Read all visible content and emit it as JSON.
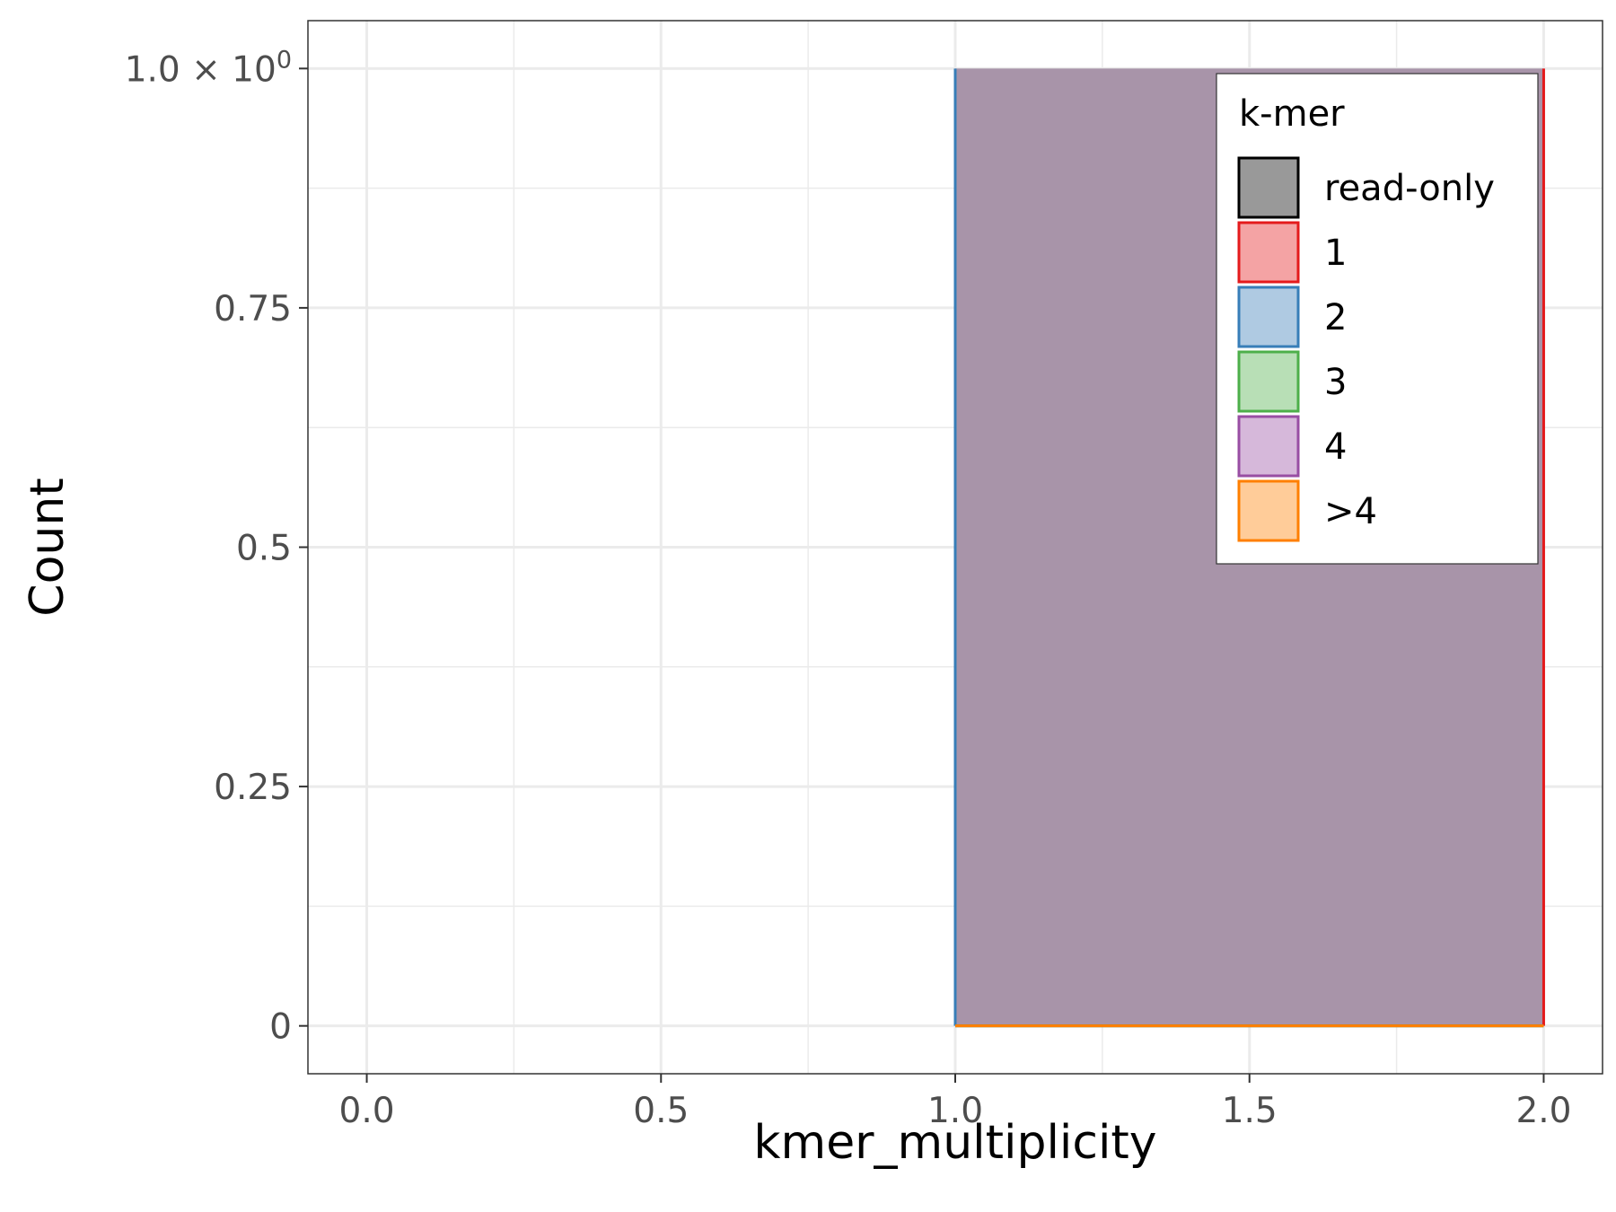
{
  "chart_data": {
    "type": "histogram",
    "xlabel": "kmer_multiplicity",
    "ylabel": "Count",
    "xlim": [
      -0.1,
      2.1
    ],
    "ylim": [
      -0.05,
      1.05
    ],
    "x_ticks": [
      0.0,
      0.5,
      1.0,
      1.5,
      2.0
    ],
    "x_tick_labels": [
      "0.0",
      "0.5",
      "1.0",
      "1.5",
      "2.0"
    ],
    "y_ticks": [
      0,
      0.25,
      0.5,
      0.75,
      1.0
    ],
    "y_tick_labels": [
      "0",
      "0.25",
      "0.5",
      "0.75",
      ""
    ],
    "y_top_label": {
      "mantissa": "1.0 × 10",
      "exponent": "0"
    },
    "grid": true,
    "legend": {
      "title": "k-mer",
      "position": "top-right",
      "entries": [
        {
          "label": "read-only",
          "stroke": "#000000",
          "fill": "#999999"
        },
        {
          "label": "1",
          "stroke": "#E41A1C",
          "fill": "#F4A3A4"
        },
        {
          "label": "2",
          "stroke": "#377EB8",
          "fill": "#AFCAE2"
        },
        {
          "label": "3",
          "stroke": "#4DAF4A",
          "fill": "#B8DFB6"
        },
        {
          "label": "4",
          "stroke": "#984EA3",
          "fill": "#D6B8DA"
        },
        {
          "label": ">4",
          "stroke": "#FF7F00",
          "fill": "#FFCC99"
        }
      ]
    },
    "series": [
      {
        "name": "read-only",
        "bins": [
          {
            "x0": 1.0,
            "x1": 2.0,
            "count": 0
          }
        ]
      },
      {
        "name": "1",
        "bins": [
          {
            "x0": 1.0,
            "x1": 2.0,
            "count": 1
          }
        ]
      },
      {
        "name": "2",
        "bins": [
          {
            "x0": 1.0,
            "x1": 2.0,
            "count": 1
          }
        ]
      },
      {
        "name": "3",
        "bins": [
          {
            "x0": 1.0,
            "x1": 2.0,
            "count": 0
          }
        ]
      },
      {
        "name": "4",
        "bins": [
          {
            "x0": 1.0,
            "x1": 2.0,
            "count": 1
          }
        ]
      },
      {
        "name": ">4",
        "bins": [
          {
            "x0": 1.0,
            "x1": 2.0,
            "count": 0
          }
        ]
      }
    ],
    "bar_fill": "#A894A9"
  }
}
